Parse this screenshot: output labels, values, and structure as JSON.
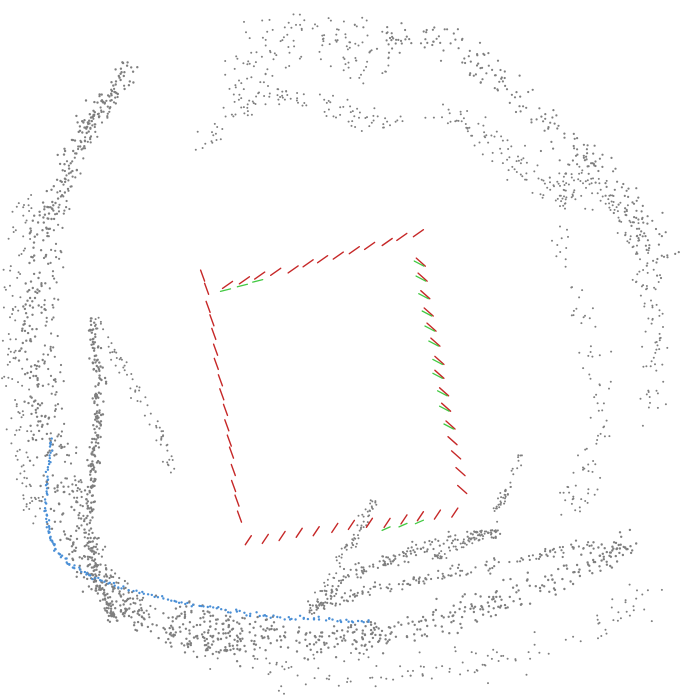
{
  "scene": {
    "title": "",
    "background_color": "#ffffff",
    "colors": {
      "map_points": "#7f7f7f",
      "trajectory_points": "#4a8fd6",
      "keyframe_cameras": "#c62828",
      "current_cameras": "#43c943"
    },
    "layers": [
      {
        "name": "map-points",
        "kind": "point-cloud"
      },
      {
        "name": "trajectory",
        "kind": "point-path"
      },
      {
        "name": "keyframe-cameras",
        "kind": "camera-frustums"
      },
      {
        "name": "current-cameras",
        "kind": "camera-frustums"
      }
    ]
  }
}
